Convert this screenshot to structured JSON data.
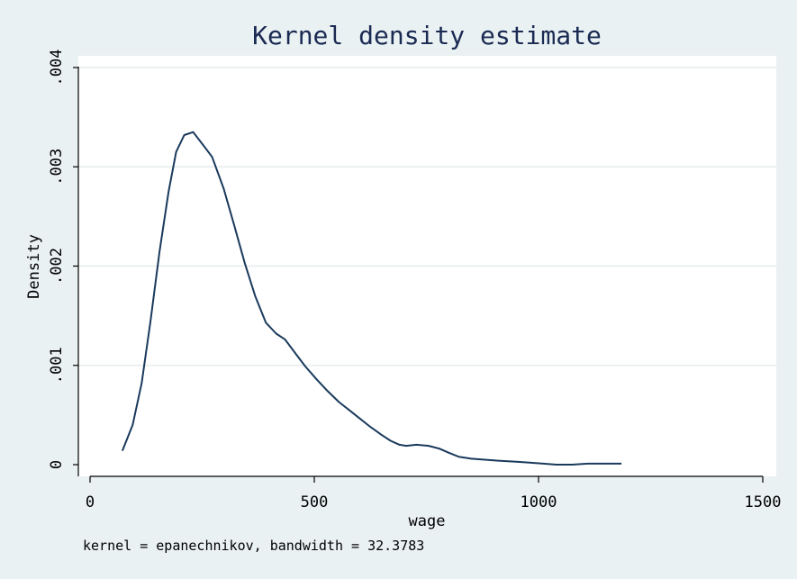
{
  "chart_data": {
    "type": "line",
    "title": "Kernel density estimate",
    "xlabel": "wage",
    "ylabel": "Density",
    "note": "kernel = epanechnikov, bandwidth = 32.3783",
    "xlim": [
      0,
      1500
    ],
    "ylim": [
      0,
      0.004
    ],
    "x_ticks": [
      0,
      500,
      1000,
      1500
    ],
    "x_tick_labels": [
      "0",
      "500",
      "1000",
      "1500"
    ],
    "y_ticks": [
      0,
      0.001,
      0.002,
      0.003,
      0.004
    ],
    "y_tick_labels": [
      "0",
      ".001",
      ".002",
      ".003",
      ".004"
    ],
    "grid": "horizontal",
    "series": [
      {
        "x": [
          72,
          95,
          115,
          135,
          155,
          175,
          192,
          210,
          230,
          252,
          272,
          298,
          322,
          345,
          368,
          392,
          415,
          435,
          458,
          480,
          505,
          530,
          555,
          578,
          600,
          625,
          650,
          670,
          690,
          705,
          728,
          755,
          780,
          800,
          822,
          850,
          880,
          910,
          950,
          980,
          1010,
          1040,
          1075,
          1110,
          1150,
          1185
        ],
        "y": [
          0.00014,
          0.0004,
          0.00082,
          0.00145,
          0.00215,
          0.00275,
          0.00315,
          0.00332,
          0.00335,
          0.00322,
          0.0031,
          0.00278,
          0.0024,
          0.00203,
          0.0017,
          0.00143,
          0.00132,
          0.00126,
          0.00112,
          0.00099,
          0.00086,
          0.00074,
          0.00063,
          0.00055,
          0.00047,
          0.00038,
          0.0003,
          0.00024,
          0.0002,
          0.00019,
          0.0002,
          0.00019,
          0.00016,
          0.00012,
          8e-05,
          6e-05,
          5e-05,
          4e-05,
          3e-05,
          2e-05,
          1e-05,
          0.0,
          0.0,
          1e-05,
          1e-05,
          1e-05
        ]
      }
    ]
  },
  "colors": {
    "background": "#eaf1f3",
    "plot_area": "#ffffff",
    "line": "#1a3a5c",
    "grid": "#e6ecee",
    "title": "#1a2a52"
  }
}
